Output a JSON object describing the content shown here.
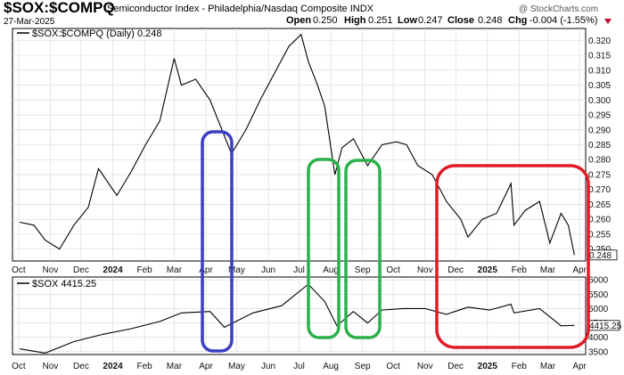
{
  "header": {
    "symbol": "$SOX:$COMPQ",
    "description": "Semiconductor Index - Philadelphia/Nasdaq Composite  INDX",
    "date": "27-Mar-2025",
    "brand": "@ StockCharts.com",
    "quote": {
      "open_label": "Open",
      "open": "0.250",
      "high_label": "High",
      "high": "0.251",
      "low_label": "Low",
      "low": "0.247",
      "close_label": "Close",
      "close": "0.248",
      "chg_label": "Chg",
      "chg": "-0.004 (-1.55%)"
    },
    "change_marker_color": "#c0002a"
  },
  "colors": {
    "line": "#000000",
    "grid": "#d6d6d6",
    "box_blue": "#3b3fc4",
    "box_green": "#2bb14a",
    "box_red": "#e01b24"
  },
  "x_axis": {
    "labels": [
      "Oct",
      "Nov",
      "Dec",
      "2024",
      "Feb",
      "Mar",
      "Apr",
      "May",
      "Jun",
      "Jul",
      "Aug",
      "Sep",
      "Oct",
      "Nov",
      "Dec",
      "2025",
      "Feb",
      "Mar",
      "Apr"
    ],
    "bold": [
      "2024",
      "2025"
    ]
  },
  "chart_data": [
    {
      "type": "line",
      "legend": "$SOX:$COMPQ (Daily) 0.248",
      "ylim": [
        0.246,
        0.324
      ],
      "y_ticks": [
        "0.320",
        "0.315",
        "0.310",
        "0.305",
        "0.300",
        "0.295",
        "0.290",
        "0.285",
        "0.280",
        "0.275",
        "0.270",
        "0.265",
        "0.260",
        "0.255",
        "0.250"
      ],
      "last_value_label": "0.248",
      "x": [
        "2023-10-02",
        "2023-10-16",
        "2023-10-27",
        "2023-11-10",
        "2023-11-24",
        "2023-12-08",
        "2023-12-18",
        "2024-01-05",
        "2024-01-19",
        "2024-02-02",
        "2024-02-16",
        "2024-03-01",
        "2024-03-08",
        "2024-03-22",
        "2024-04-05",
        "2024-04-19",
        "2024-04-26",
        "2024-05-10",
        "2024-05-24",
        "2024-06-07",
        "2024-06-21",
        "2024-07-03",
        "2024-07-10",
        "2024-07-19",
        "2024-07-26",
        "2024-08-05",
        "2024-08-12",
        "2024-08-23",
        "2024-09-06",
        "2024-09-20",
        "2024-10-04",
        "2024-10-14",
        "2024-10-25",
        "2024-11-08",
        "2024-11-22",
        "2024-12-06",
        "2024-12-13",
        "2024-12-27",
        "2025-01-10",
        "2025-01-24",
        "2025-01-27",
        "2025-02-07",
        "2025-02-21",
        "2025-03-03",
        "2025-03-14",
        "2025-03-21",
        "2025-03-27"
      ],
      "values": [
        0.259,
        0.258,
        0.253,
        0.25,
        0.258,
        0.264,
        0.277,
        0.268,
        0.276,
        0.285,
        0.293,
        0.314,
        0.305,
        0.307,
        0.3,
        0.288,
        0.282,
        0.29,
        0.3,
        0.309,
        0.318,
        0.322,
        0.313,
        0.305,
        0.298,
        0.275,
        0.284,
        0.287,
        0.278,
        0.285,
        0.286,
        0.285,
        0.278,
        0.275,
        0.266,
        0.26,
        0.254,
        0.26,
        0.262,
        0.272,
        0.258,
        0.263,
        0.266,
        0.252,
        0.262,
        0.258,
        0.248
      ]
    },
    {
      "type": "line",
      "legend": "$SOX 4415.25",
      "ylim": [
        3400,
        6100
      ],
      "y_ticks": [
        "6000",
        "5500",
        "5000",
        "4500",
        "4000",
        "3500"
      ],
      "last_value_label": "4415.25",
      "x": [
        "2023-10-02",
        "2023-10-27",
        "2023-11-24",
        "2023-12-22",
        "2024-01-19",
        "2024-02-16",
        "2024-03-08",
        "2024-04-05",
        "2024-04-19",
        "2024-05-17",
        "2024-06-14",
        "2024-07-10",
        "2024-07-26",
        "2024-08-07",
        "2024-08-23",
        "2024-09-06",
        "2024-09-20",
        "2024-10-11",
        "2024-11-01",
        "2024-11-22",
        "2024-12-13",
        "2025-01-03",
        "2025-01-24",
        "2025-01-27",
        "2025-02-21",
        "2025-03-07",
        "2025-03-14",
        "2025-03-27"
      ],
      "values": [
        3600,
        3450,
        3850,
        4100,
        4300,
        4550,
        4850,
        4900,
        4350,
        4850,
        5100,
        5850,
        5250,
        4400,
        4900,
        4500,
        4950,
        5000,
        5000,
        4800,
        5050,
        4950,
        5150,
        4850,
        5000,
        4600,
        4400,
        4415
      ]
    }
  ]
}
